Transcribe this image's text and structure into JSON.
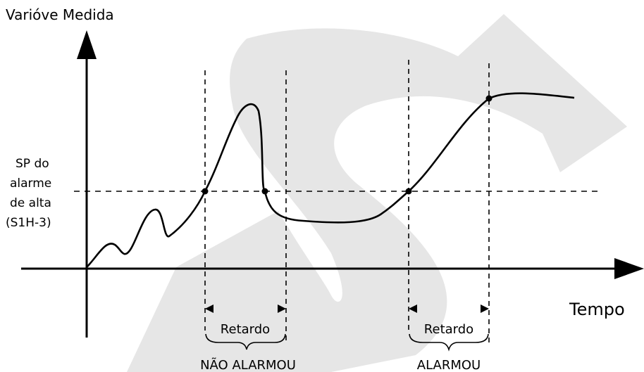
{
  "labels": {
    "y_axis": "Varióve Medida",
    "x_axis": "Tempo",
    "sp_line1": "SP do",
    "sp_line2": "alarme",
    "sp_line3": "de alta",
    "sp_line4": "(S1H-3)",
    "delay_left": "Retardo",
    "delay_right": "Retardo",
    "outcome_left": "NÃO ALARMOU",
    "outcome_right": "ALARMOU"
  },
  "colors": {
    "ink": "#000000",
    "watermark": "#e6e6e6"
  }
}
